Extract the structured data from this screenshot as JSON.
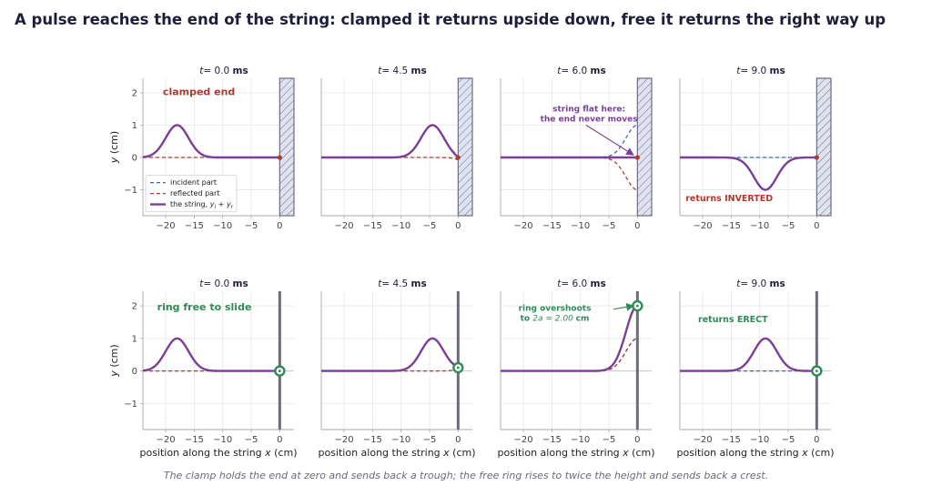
{
  "figure": {
    "title": "A pulse reaches the end of the string:  clamped it returns upside down,  free it returns the right way up",
    "caption": "The clamp holds the end at zero and sends back a trough;  the free ring rises to twice the height and sends back a crest.",
    "xlabel": "position along the string",
    "xlabel_var": "x",
    "xlabel_unit": "(cm)",
    "ylabel_var": "y",
    "ylabel_unit": "(cm)",
    "legend": {
      "incident": "incident part",
      "reflected": "reflected part",
      "string_prefix": "the string,",
      "string_formula_y": "y",
      "string_formula_sub_i": "i",
      "string_formula_sub_r": "r"
    },
    "colors": {
      "string": "#7b3f98",
      "incident": "#3b6aa8",
      "reflected": "#b03a30",
      "clamp_label": "#b03a30",
      "ring": "#2e8b57",
      "free_label": "#2e8b57",
      "annot_purple": "#7b3f98",
      "wall_fill": "#dfe3f0",
      "wall_edge": "#6c6c84",
      "rod": "#6c6c7c",
      "grid": "#e6e6ea",
      "axis": "#aaaaaa",
      "title": "#1e1e3c"
    }
  },
  "chart_data": [
    {
      "type": "line",
      "row": "clamped",
      "time_var": "t",
      "time_eq": "= 0.0",
      "time_unit": "ms",
      "xlim": [
        -24,
        2.5
      ],
      "ylim": [
        -1.8,
        2.45
      ],
      "xticks": [
        -20,
        -15,
        -10,
        -5,
        0
      ],
      "yticks": [
        -1,
        0,
        1,
        2
      ],
      "pulse": {
        "amplitude": 1.0,
        "center": -18,
        "width": 2.0
      },
      "series": [
        {
          "name": "incident part"
        },
        {
          "name": "reflected part"
        },
        {
          "name": "the string,  yi + yr"
        }
      ],
      "annotation": "clamped end",
      "end_y": 0
    },
    {
      "type": "line",
      "row": "clamped",
      "time_var": "t",
      "time_eq": "= 4.5",
      "time_unit": "ms",
      "xlim": [
        -24,
        2.5
      ],
      "ylim": [
        -1.8,
        2.45
      ],
      "xticks": [
        -20,
        -15,
        -10,
        -5,
        0
      ],
      "yticks": [
        -1,
        0,
        1,
        2
      ],
      "pulse": {
        "amplitude": 1.0,
        "center": -4.5,
        "width": 2.0
      },
      "end_y": 0
    },
    {
      "type": "line",
      "row": "clamped",
      "time_var": "t",
      "time_eq": "= 6.0",
      "time_unit": "ms",
      "xlim": [
        -24,
        2.5
      ],
      "ylim": [
        -1.8,
        2.45
      ],
      "xticks": [
        -20,
        -15,
        -10,
        -5,
        0
      ],
      "yticks": [
        -1,
        0,
        1,
        2
      ],
      "pulse": {
        "amplitude": 1.0,
        "center": 0,
        "width": 2.0
      },
      "annotation": "string flat here:\nthe end never moves",
      "end_y": 0
    },
    {
      "type": "line",
      "row": "clamped",
      "time_var": "t",
      "time_eq": "= 9.0",
      "time_unit": "ms",
      "xlim": [
        -24,
        2.5
      ],
      "ylim": [
        -1.8,
        2.45
      ],
      "xticks": [
        -20,
        -15,
        -10,
        -5,
        0
      ],
      "yticks": [
        -1,
        0,
        1,
        2
      ],
      "pulse": {
        "amplitude": 1.0,
        "center": 9,
        "width": 2.0
      },
      "annotation": "returns  INVERTED",
      "end_y": 0
    },
    {
      "type": "line",
      "row": "free",
      "time_var": "t",
      "time_eq": "= 0.0",
      "time_unit": "ms",
      "xlim": [
        -24,
        2.5
      ],
      "ylim": [
        -1.8,
        2.45
      ],
      "xticks": [
        -20,
        -15,
        -10,
        -5,
        0
      ],
      "yticks": [
        -1,
        0,
        1,
        2
      ],
      "pulse": {
        "amplitude": 1.0,
        "center": -18,
        "width": 2.0
      },
      "annotation": "ring free to slide",
      "end_y": 0.0
    },
    {
      "type": "line",
      "row": "free",
      "time_var": "t",
      "time_eq": "= 4.5",
      "time_unit": "ms",
      "xlim": [
        -24,
        2.5
      ],
      "ylim": [
        -1.8,
        2.45
      ],
      "xticks": [
        -20,
        -15,
        -10,
        -5,
        0
      ],
      "yticks": [
        -1,
        0,
        1,
        2
      ],
      "pulse": {
        "amplitude": 1.0,
        "center": -4.5,
        "width": 2.0
      },
      "end_y": 0.1
    },
    {
      "type": "line",
      "row": "free",
      "time_var": "t",
      "time_eq": "= 6.0",
      "time_unit": "ms",
      "xlim": [
        -24,
        2.5
      ],
      "ylim": [
        -1.8,
        2.45
      ],
      "xticks": [
        -20,
        -15,
        -10,
        -5,
        0
      ],
      "yticks": [
        -1,
        0,
        1,
        2
      ],
      "pulse": {
        "amplitude": 1.0,
        "center": 0,
        "width": 2.0
      },
      "annotation": "ring overshoots",
      "annotation2_prefix": "to",
      "annotation2_formula": "2a = 2.00",
      "annotation2_unit": "cm",
      "end_y": 2.0
    },
    {
      "type": "line",
      "row": "free",
      "time_var": "t",
      "time_eq": "= 9.0",
      "time_unit": "ms",
      "xlim": [
        -24,
        2.5
      ],
      "ylim": [
        -1.8,
        2.45
      ],
      "xticks": [
        -20,
        -15,
        -10,
        -5,
        0
      ],
      "yticks": [
        -1,
        0,
        1,
        2
      ],
      "pulse": {
        "amplitude": 1.0,
        "center": 9,
        "width": 2.0
      },
      "annotation": "returns  ERECT",
      "end_y": 0.0
    }
  ]
}
